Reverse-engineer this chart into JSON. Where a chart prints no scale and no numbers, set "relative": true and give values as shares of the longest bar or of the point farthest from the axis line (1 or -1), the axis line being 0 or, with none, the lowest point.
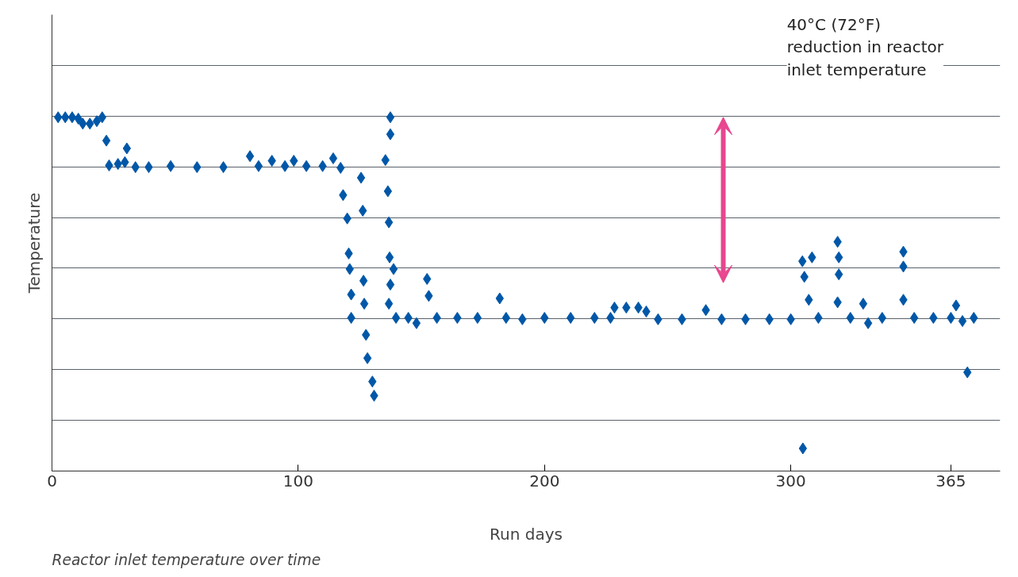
{
  "chart_data": {
    "type": "scatter",
    "relative": true,
    "xlabel": "Run days",
    "ylabel": "Temperature",
    "marker": "diamond",
    "grid": "y",
    "xlim": [
      0,
      385
    ],
    "xticks": [
      0,
      100,
      200,
      300,
      365
    ],
    "annotations": [
      "40°C (72°F)\nreduction in reactor\ninlet temperature",
      "Reactor inlet temperature over time"
    ],
    "series": [
      {
        "color": "#0057a8",
        "x": [
          2.5,
          5.4,
          8.2,
          10.7,
          12.5,
          15.4,
          18.2,
          20.4,
          22.1,
          23.2,
          26.8,
          29.6,
          30.4,
          33.9,
          39.3,
          48.2,
          58.9,
          69.6,
          80.4,
          83.9,
          89.3,
          94.6,
          98.2,
          103.3,
          109.9,
          114.2,
          117.2,
          118.2,
          119.9,
          120.5,
          120.9,
          121.5,
          121.5,
          125.5,
          126.2,
          126.5,
          126.8,
          127.5,
          128.1,
          130.1,
          130.8,
          135.4,
          136.4,
          136.8,
          137.1,
          137.4,
          136.8,
          137.4,
          137.4,
          138.7,
          139.7,
          144.7,
          148,
          152.3,
          153,
          156.3,
          164.6,
          172.8,
          181.8,
          184.4,
          191,
          200,
          210.6,
          220.3,
          226.8,
          228.4,
          233.2,
          238.1,
          241.3,
          246.1,
          255.8,
          265.5,
          271.9,
          281.6,
          291.3,
          300,
          304.7,
          305.5,
          307.3,
          304.9,
          308.6,
          311.2,
          319,
          319.5,
          319.5,
          319,
          324.2,
          329.4,
          331.4,
          337.1,
          345.7,
          345.7,
          345.7,
          350.1,
          357.9,
          365,
          367.1,
          369.7,
          371.7,
          374.3
        ],
        "values": [
          1.0,
          1.0,
          1.0,
          0.996,
          0.982,
          0.982,
          0.989,
          1.0,
          0.934,
          0.864,
          0.868,
          0.873,
          0.912,
          0.859,
          0.859,
          0.862,
          0.859,
          0.859,
          0.89,
          0.862,
          0.877,
          0.862,
          0.877,
          0.862,
          0.862,
          0.884,
          0.857,
          0.78,
          0.714,
          0.615,
          0.571,
          0.499,
          0.433,
          0.829,
          0.736,
          0.538,
          0.473,
          0.385,
          0.319,
          0.253,
          0.213,
          0.879,
          0.791,
          0.703,
          0.604,
          0.527,
          0.473,
          1.0,
          0.952,
          0.571,
          0.433,
          0.433,
          0.418,
          0.543,
          0.495,
          0.433,
          0.433,
          0.433,
          0.488,
          0.433,
          0.429,
          0.433,
          0.433,
          0.433,
          0.433,
          0.462,
          0.462,
          0.462,
          0.451,
          0.429,
          0.429,
          0.455,
          0.429,
          0.429,
          0.429,
          0.429,
          0.593,
          0.549,
          0.484,
          0.064,
          0.604,
          0.433,
          0.648,
          0.604,
          0.556,
          0.477,
          0.433,
          0.473,
          0.418,
          0.433,
          0.62,
          0.578,
          0.484,
          0.433,
          0.433,
          0.433,
          0.468,
          0.424,
          0.279,
          0.433
        ]
      }
    ]
  }
}
